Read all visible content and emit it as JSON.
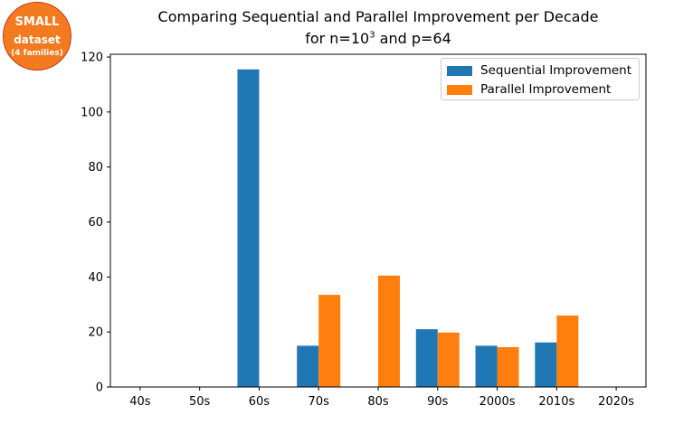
{
  "badge": {
    "line1": "SMALL",
    "line2": "dataset",
    "line3": "(4 families)",
    "fill": "#f47a1f"
  },
  "chart_data": {
    "type": "bar",
    "title_line1": "Comparing Sequential and Parallel Improvement per Decade",
    "title_line2_prefix": "for n=10",
    "title_line2_sup": "3",
    "title_line2_suffix": " and p=64",
    "xlabel": "",
    "ylabel": "",
    "categories": [
      "40s",
      "50s",
      "60s",
      "70s",
      "80s",
      "90s",
      "2000s",
      "2010s",
      "2020s"
    ],
    "series": [
      {
        "name": "Sequential Improvement",
        "color": "#1f77b4",
        "values": [
          0,
          0,
          115.5,
          15,
          0,
          21,
          15,
          16.2,
          0
        ]
      },
      {
        "name": "Parallel Improvement",
        "color": "#ff7f0e",
        "values": [
          0,
          0,
          0,
          33.5,
          40.5,
          19.8,
          14.5,
          26,
          0
        ]
      }
    ],
    "ylim": [
      0,
      121
    ],
    "yticks": [
      0,
      20,
      40,
      60,
      80,
      100,
      120
    ],
    "grid": false,
    "legend_position": "top-right"
  }
}
